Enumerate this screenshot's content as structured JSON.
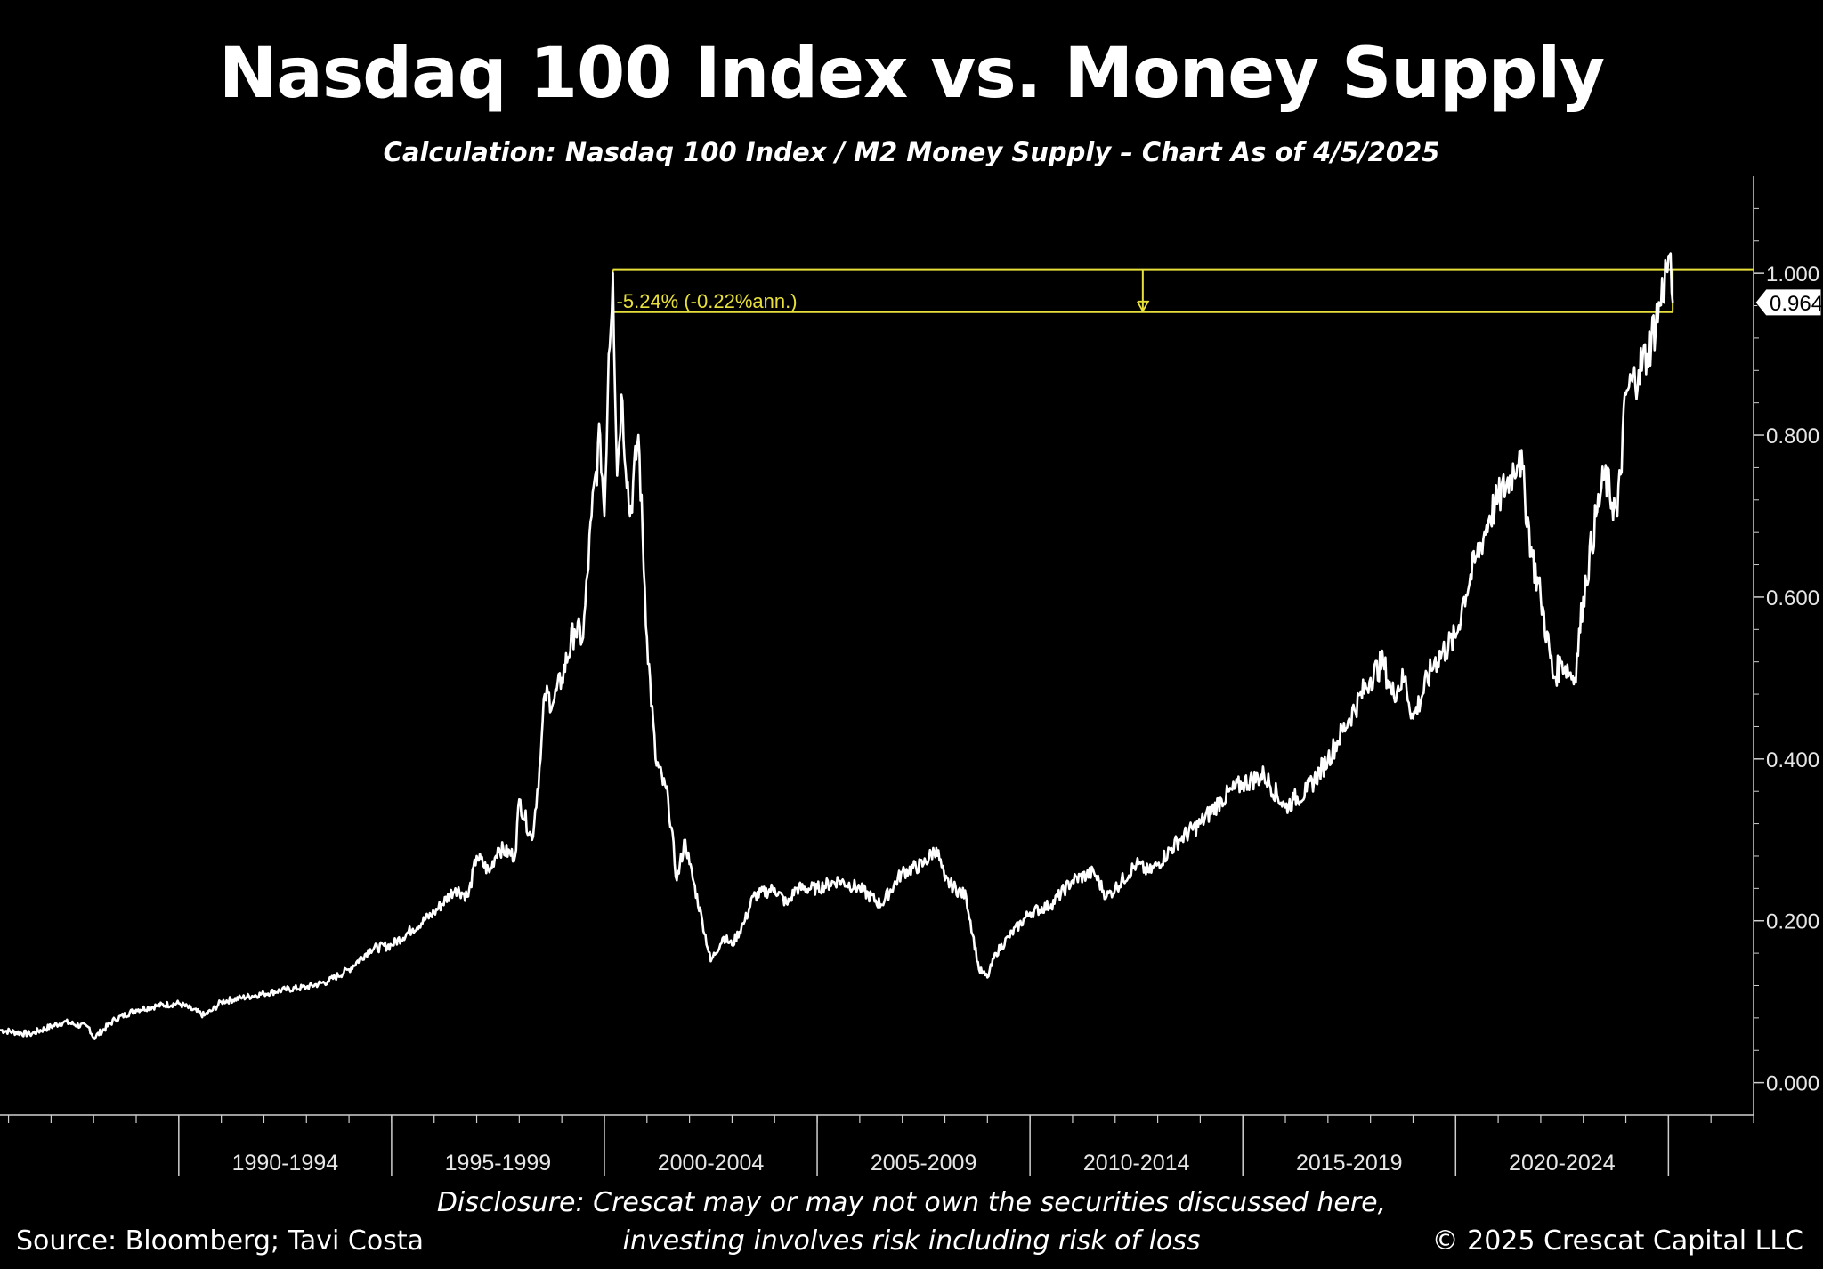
{
  "header": {
    "title": "Nasdaq 100 Index vs. Money Supply",
    "subtitle": "Calculation: Nasdaq 100 Index / M2 Money Supply – Chart As of 4/5/2025"
  },
  "footer": {
    "source": "Source: Bloomberg; Tavi Costa",
    "disclosure_line1": "Disclosure: Crescat may or may not own the securities discussed here,",
    "disclosure_line2": "investing involves risk including risk of loss",
    "copyright": "© 2025 Crescat Capital LLC"
  },
  "colors": {
    "background": "#000000",
    "line": "#ffffff",
    "annotation": "#e8e03a"
  },
  "chart_data": {
    "type": "line",
    "title": "Nasdaq 100 Index vs. Money Supply",
    "subtitle": "Calculation: Nasdaq 100 Index / M2 Money Supply – Chart As of 4/5/2025",
    "xlabel": "",
    "ylabel": "",
    "xlim": [
      1985.8,
      2027.0
    ],
    "ylim": [
      -0.04,
      1.12
    ],
    "x_tick_labels": [
      {
        "label": "1990-1994",
        "x": 1992.5
      },
      {
        "label": "1995-1999",
        "x": 1997.5
      },
      {
        "label": "2000-2004",
        "x": 2002.5
      },
      {
        "label": "2005-2009",
        "x": 2007.5
      },
      {
        "label": "2010-2014",
        "x": 2012.5
      },
      {
        "label": "2015-2019",
        "x": 2017.5
      },
      {
        "label": "2020-2024",
        "x": 2022.5
      }
    ],
    "x_period_boundaries": [
      1990,
      1995,
      2000,
      2005,
      2010,
      2015,
      2020,
      2025
    ],
    "y_ticks": [
      0.0,
      0.2,
      0.4,
      0.6,
      0.8,
      1.0
    ],
    "y_tick_labels": [
      "0.000",
      "0.200",
      "0.400",
      "0.600",
      "0.800",
      "1.000"
    ],
    "last_value_label": "0.964",
    "last_value": 0.964,
    "grid": false,
    "annotation": {
      "text": "-5.24% (-0.22%ann.)",
      "x_start": 2000.2,
      "x_end": 2025.1,
      "y_high": 1.005,
      "y_low": 0.952
    },
    "series": [
      {
        "x": [
          1985.8,
          1986.5,
          1987.3,
          1987.9,
          1988.0,
          1988.5,
          1989.0,
          1989.5,
          1990.0,
          1990.6,
          1990.8,
          1991.0,
          1991.5,
          1992.0,
          1992.5,
          1993.0,
          1993.5,
          1994.0,
          1994.5,
          1995.0,
          1995.5,
          1996.0,
          1996.5,
          1996.8,
          1997.0,
          1997.3,
          1997.5,
          1997.9,
          1998.0,
          1998.3,
          1998.5,
          1998.6,
          1998.8,
          1999.0,
          1999.3,
          1999.5,
          1999.7,
          1999.9,
          2000.0,
          2000.1,
          2000.2,
          2000.3,
          2000.4,
          2000.6,
          2000.8,
          2001.0,
          2001.2,
          2001.5,
          2001.7,
          2001.9,
          2002.0,
          2002.3,
          2002.5,
          2002.8,
          2003.0,
          2003.3,
          2003.5,
          2004.0,
          2004.3,
          2004.5,
          2005.0,
          2005.5,
          2006.0,
          2006.5,
          2007.0,
          2007.5,
          2007.8,
          2008.0,
          2008.5,
          2008.8,
          2009.0,
          2009.2,
          2009.5,
          2010.0,
          2010.5,
          2011.0,
          2011.5,
          2011.8,
          2012.0,
          2012.5,
          2012.8,
          2013.0,
          2013.5,
          2014.0,
          2014.5,
          2015.0,
          2015.5,
          2016.0,
          2016.2,
          2016.5,
          2017.0,
          2017.5,
          2018.0,
          2018.3,
          2018.5,
          2018.8,
          2019.0,
          2019.5,
          2020.0,
          2020.2,
          2020.5,
          2020.8,
          2021.0,
          2021.3,
          2021.5,
          2021.8,
          2022.0,
          2022.3,
          2022.5,
          2022.8,
          2023.0,
          2023.3,
          2023.5,
          2023.8,
          2024.0,
          2024.3,
          2024.5,
          2024.8,
          2025.0,
          2025.1
        ],
        "values": [
          0.065,
          0.06,
          0.075,
          0.068,
          0.055,
          0.078,
          0.09,
          0.095,
          0.098,
          0.083,
          0.09,
          0.1,
          0.105,
          0.11,
          0.115,
          0.118,
          0.125,
          0.14,
          0.165,
          0.17,
          0.19,
          0.21,
          0.24,
          0.23,
          0.28,
          0.26,
          0.29,
          0.28,
          0.35,
          0.3,
          0.4,
          0.48,
          0.47,
          0.5,
          0.56,
          0.55,
          0.7,
          0.8,
          0.7,
          0.9,
          1.0,
          0.75,
          0.85,
          0.7,
          0.8,
          0.55,
          0.4,
          0.35,
          0.25,
          0.3,
          0.27,
          0.2,
          0.15,
          0.18,
          0.17,
          0.2,
          0.23,
          0.24,
          0.22,
          0.24,
          0.24,
          0.25,
          0.24,
          0.22,
          0.26,
          0.27,
          0.29,
          0.25,
          0.23,
          0.14,
          0.13,
          0.16,
          0.18,
          0.21,
          0.22,
          0.25,
          0.26,
          0.23,
          0.24,
          0.27,
          0.26,
          0.27,
          0.3,
          0.32,
          0.35,
          0.37,
          0.38,
          0.34,
          0.35,
          0.36,
          0.4,
          0.45,
          0.5,
          0.52,
          0.48,
          0.5,
          0.45,
          0.52,
          0.55,
          0.6,
          0.65,
          0.7,
          0.72,
          0.75,
          0.78,
          0.65,
          0.6,
          0.5,
          0.52,
          0.5,
          0.6,
          0.7,
          0.75,
          0.7,
          0.85,
          0.88,
          0.9,
          0.96,
          1.02,
          0.964
        ]
      }
    ]
  }
}
